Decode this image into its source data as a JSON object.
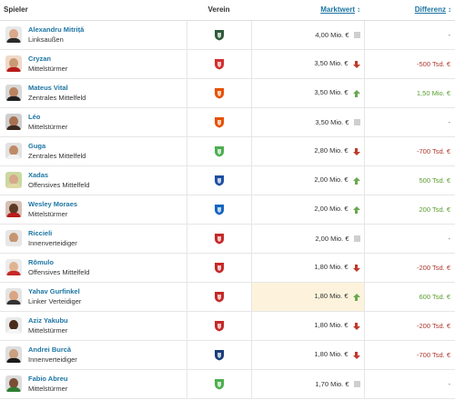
{
  "header": {
    "player": "Spieler",
    "club": "Verein",
    "market_value": "Marktwert",
    "difference": "Differenz",
    "sort_icon": "sort-arrows-icon"
  },
  "colors": {
    "link": "#1d75a3",
    "positive": "#5a9e2f",
    "negative": "#b03a2e",
    "highlight": "#fdf3dc"
  },
  "players": [
    {
      "name": "Alexandru Mitriță",
      "position": "Linksaußen",
      "club_crest": "crest-dark-green",
      "value": "4,00 Mio. €",
      "trend": "none",
      "diff": "-",
      "diff_type": "neu",
      "skin": "#d9a98a",
      "shirt": "#2b2b2b",
      "bg": "#e9e9e9",
      "crest_color": "#2f5a3a"
    },
    {
      "name": "Cryzan",
      "position": "Mittelstürmer",
      "club_crest": "crest-red-white",
      "value": "3,50 Mio. €",
      "trend": "down",
      "diff": "-500 Tsd. €",
      "diff_type": "neg",
      "skin": "#c99a73",
      "shirt": "#b71c1c",
      "bg": "#f0d9c9",
      "crest_color": "#d32f2f"
    },
    {
      "name": "Mateus Vital",
      "position": "Zentrales Mittelfeld",
      "club_crest": "crest-red-orange",
      "value": "3,50 Mio. €",
      "trend": "up",
      "diff": "1,50 Mio. €",
      "diff_type": "pos",
      "skin": "#b98462",
      "shirt": "#222222",
      "bg": "#d8d8d8",
      "crest_color": "#e65100"
    },
    {
      "name": "Léo",
      "position": "Mittelstürmer",
      "club_crest": "crest-red-orange",
      "value": "3,50 Mio. €",
      "trend": "none",
      "diff": "-",
      "diff_type": "neu",
      "skin": "#a8714f",
      "shirt": "#3b2a20",
      "bg": "#cfcfcf",
      "crest_color": "#e65100"
    },
    {
      "name": "Guga",
      "position": "Zentrales Mittelfeld",
      "club_crest": "crest-green-yellow",
      "value": "2,80 Mio. €",
      "trend": "down",
      "diff": "-700 Tsd. €",
      "diff_type": "neg",
      "skin": "#c08a65",
      "shirt": "#f2f2f2",
      "bg": "#e2e2e2",
      "crest_color": "#4caf50"
    },
    {
      "name": "Xadas",
      "position": "Offensives Mittelfeld",
      "club_crest": "crest-blue-shield",
      "value": "2,00 Mio. €",
      "trend": "up",
      "diff": "500 Tsd. €",
      "diff_type": "pos",
      "skin": "#d6a98a",
      "shirt": "#e0d9a6",
      "bg": "#cbd8a0",
      "crest_color": "#1e4fa3"
    },
    {
      "name": "Wesley Moraes",
      "position": "Mittelstürmer",
      "club_crest": "crest-blue-round",
      "value": "2,00 Mio. €",
      "trend": "up",
      "diff": "200 Tsd. €",
      "diff_type": "pos",
      "skin": "#5c3a26",
      "shirt": "#b71c1c",
      "bg": "#d6c2b4",
      "crest_color": "#1565c0"
    },
    {
      "name": "Riccieli",
      "position": "Innenverteidiger",
      "club_crest": "crest-red-white-square",
      "value": "2,00 Mio. €",
      "trend": "none",
      "diff": "-",
      "diff_type": "neu",
      "skin": "#c69672",
      "shirt": "#e8e8e8",
      "bg": "#e6e6e6",
      "crest_color": "#c62828"
    },
    {
      "name": "Rômulo",
      "position": "Offensives Mittelfeld",
      "club_crest": "crest-red-stripes",
      "value": "1,80 Mio. €",
      "trend": "down",
      "diff": "-200 Tsd. €",
      "diff_type": "neg",
      "skin": "#e0b491",
      "shirt": "#c62828",
      "bg": "#ececec",
      "crest_color": "#c62828"
    },
    {
      "name": "Yahav Gurfinkel",
      "position": "Linker Verteidiger",
      "club_crest": "crest-red-stripes",
      "value": "1,80 Mio. €",
      "trend": "up",
      "diff": "600 Tsd. €",
      "diff_type": "pos",
      "skin": "#d9a583",
      "shirt": "#333333",
      "bg": "#e4e4e4",
      "crest_color": "#c62828",
      "highlight": true
    },
    {
      "name": "Aziz Yakubu",
      "position": "Mittelstürmer",
      "club_crest": "crest-red-white-square",
      "value": "1,80 Mio. €",
      "trend": "down",
      "diff": "-200 Tsd. €",
      "diff_type": "neg",
      "skin": "#4a2c1c",
      "shirt": "#f5f5f5",
      "bg": "#e9e9e9",
      "crest_color": "#c62828"
    },
    {
      "name": "Andrei Burcă",
      "position": "Innenverteidiger",
      "club_crest": "crest-navy-shield",
      "value": "1,80 Mio. €",
      "trend": "down",
      "diff": "-700 Tsd. €",
      "diff_type": "neg",
      "skin": "#caa080",
      "shirt": "#1b1b1b",
      "bg": "#dedede",
      "crest_color": "#1a3d7a"
    },
    {
      "name": "Fabio Abreu",
      "position": "Mittelstürmer",
      "club_crest": "crest-green-yellow",
      "value": "1,70 Mio. €",
      "trend": "none",
      "diff": "-",
      "diff_type": "neu",
      "skin": "#7a4e34",
      "shirt": "#2e7d32",
      "bg": "#dcdcdc",
      "crest_color": "#4caf50"
    }
  ]
}
